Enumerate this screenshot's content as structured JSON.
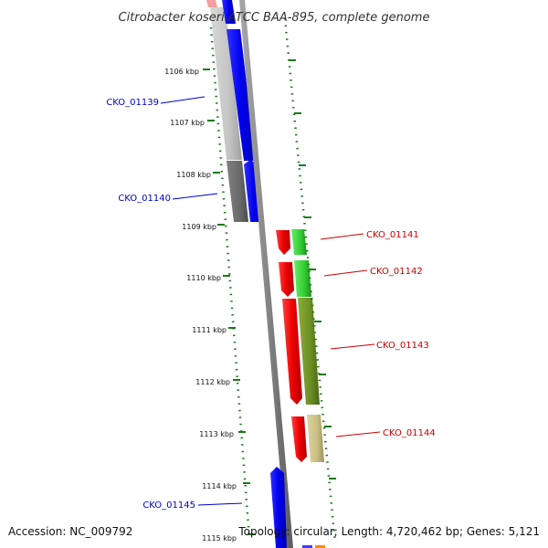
{
  "map": {
    "title": "Citrobacter koseri ATCC BAA-895, complete genome",
    "accession_label": "Accession: NC_009792",
    "summary_label": "Topology: circular; Length: 4,720,462 bp; Genes: 5,121"
  },
  "ticks": [
    {
      "label": "1106 kbp"
    },
    {
      "label": "1107 kbp"
    },
    {
      "label": "1108 kbp"
    },
    {
      "label": "1109 kbp"
    },
    {
      "label": "1110 kbp"
    },
    {
      "label": "1111 kbp"
    },
    {
      "label": "1112 kbp"
    },
    {
      "label": "1113 kbp"
    },
    {
      "label": "1114 kbp"
    },
    {
      "label": "1115 kbp"
    }
  ],
  "genes": [
    {
      "id": "CKO_01139",
      "strand": "reverse",
      "label_color": "#0000cc"
    },
    {
      "id": "CKO_01140",
      "strand": "reverse",
      "label_color": "#0000cc"
    },
    {
      "id": "CKO_01141",
      "strand": "forward",
      "label_color": "#cc0000"
    },
    {
      "id": "CKO_01142",
      "strand": "forward",
      "label_color": "#cc0000"
    },
    {
      "id": "CKO_01143",
      "strand": "forward",
      "label_color": "#cc0000"
    },
    {
      "id": "CKO_01144",
      "strand": "forward",
      "label_color": "#cc0000"
    },
    {
      "id": "CKO_01145",
      "strand": "reverse",
      "label_color": "#0000cc"
    }
  ],
  "colors": {
    "forward_cds": "#ff0000",
    "reverse_cds": "#0000ff",
    "backbone": "#808080",
    "gc_skew_dots": "#1a7a1a",
    "cog_light_gray": "#c8c8c8",
    "cog_dark_gray": "#6e6e6e",
    "cog_green": "#33cc33",
    "cog_olive": "#6b8e23",
    "cog_khaki": "#c8be82"
  }
}
